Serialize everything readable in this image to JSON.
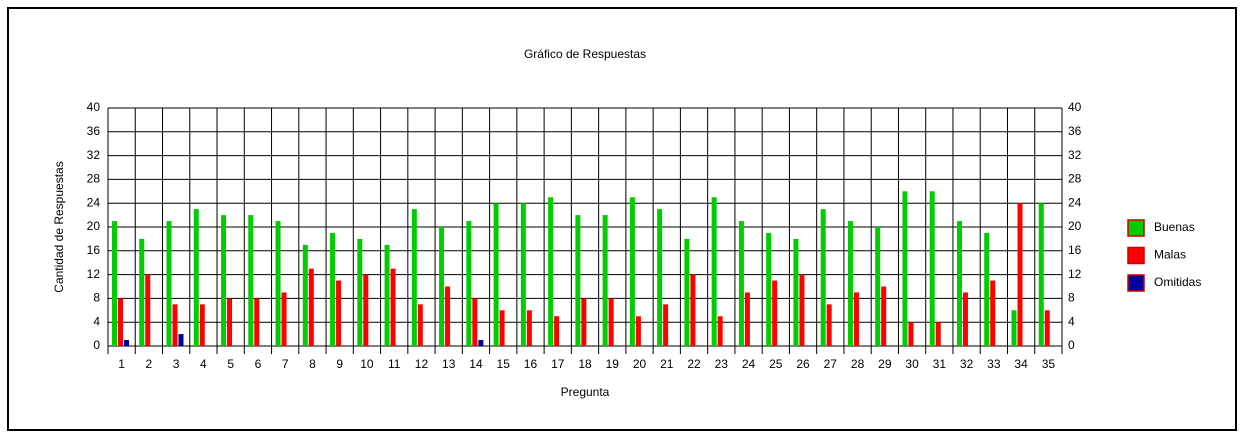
{
  "chart_data": {
    "type": "bar",
    "title": "Gráfico de Respuestas",
    "x_label": "Pregunta",
    "y_label": "Cantidad de Respuestas",
    "categories": [
      "1",
      "2",
      "3",
      "4",
      "5",
      "6",
      "7",
      "8",
      "9",
      "10",
      "11",
      "12",
      "13",
      "14",
      "15",
      "16",
      "17",
      "18",
      "19",
      "20",
      "21",
      "22",
      "23",
      "24",
      "25",
      "26",
      "27",
      "28",
      "29",
      "30",
      "31",
      "32",
      "33",
      "34",
      "35"
    ],
    "series": [
      {
        "name": "Buenas",
        "color": "#00cc00",
        "values": [
          21,
          18,
          21,
          23,
          22,
          22,
          21,
          17,
          19,
          18,
          17,
          23,
          20,
          21,
          24,
          24,
          25,
          22,
          22,
          25,
          23,
          18,
          25,
          21,
          19,
          18,
          23,
          21,
          20,
          26,
          26,
          21,
          19,
          6,
          24
        ]
      },
      {
        "name": "Malas",
        "color": "#ff0000",
        "values": [
          8,
          12,
          7,
          7,
          8,
          8,
          9,
          13,
          11,
          12,
          13,
          7,
          10,
          8,
          6,
          6,
          5,
          8,
          8,
          5,
          7,
          12,
          5,
          9,
          11,
          12,
          7,
          9,
          10,
          4,
          4,
          9,
          11,
          24,
          6
        ]
      },
      {
        "name": "Omitidas",
        "color": "#000099",
        "values": [
          1,
          0,
          2,
          0,
          0,
          0,
          0,
          0,
          0,
          0,
          0,
          0,
          0,
          1,
          0,
          0,
          0,
          0,
          0,
          0,
          0,
          0,
          0,
          0,
          0,
          0,
          0,
          0,
          0,
          0,
          0,
          0,
          0,
          0,
          0
        ]
      }
    ],
    "ylim": [
      0,
      40
    ],
    "yticks": [
      0,
      4,
      8,
      12,
      16,
      20,
      24,
      28,
      32,
      36,
      40
    ],
    "grid": true,
    "legend": "right"
  }
}
